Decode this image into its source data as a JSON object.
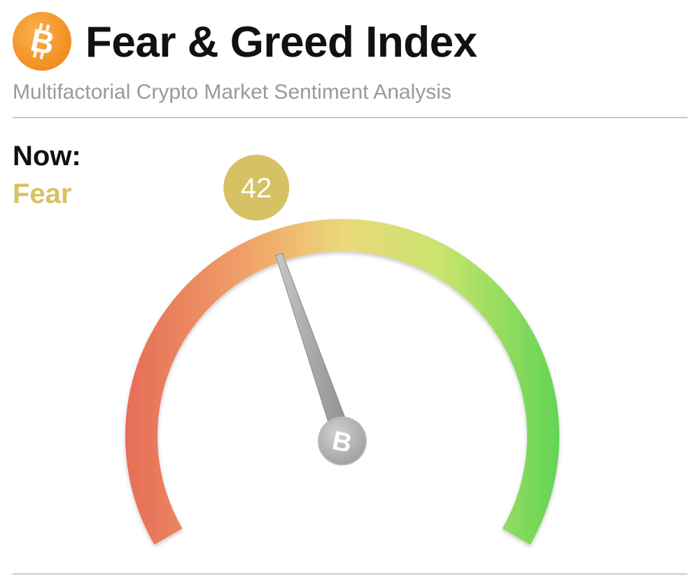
{
  "header": {
    "logo_icon": "bitcoin-icon",
    "title": "Fear & Greed Index",
    "subtitle": "Multifactorial Crypto Market Sentiment Analysis"
  },
  "now": {
    "label": "Now:",
    "sentiment": "Fear",
    "sentiment_color": "#d6c264"
  },
  "gauge": {
    "value": 42,
    "value_text": "42",
    "min": 0,
    "max": 100,
    "badge_color": "#d6c264",
    "gradient_colors": [
      "#e66b57",
      "#f0a168",
      "#ecd87a",
      "#c9e46d",
      "#5fd453"
    ],
    "needle_color": "#a9a9a9",
    "hub_icon": "bitcoin-icon"
  },
  "colors": {
    "brand_orange": "#f39a2b"
  }
}
